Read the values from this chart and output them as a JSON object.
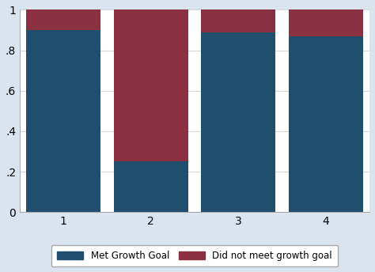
{
  "categories": [
    1,
    2,
    3,
    4
  ],
  "met_goal": [
    0.9,
    0.25,
    0.89,
    0.87
  ],
  "did_not_meet": [
    0.1,
    0.75,
    0.11,
    0.13
  ],
  "color_met": "#1F4E6E",
  "color_not_met": "#8B3040",
  "legend_met": "Met Growth Goal",
  "legend_not_met": "Did not meet growth goal",
  "yticks": [
    0,
    0.2,
    0.4,
    0.6,
    0.8,
    1.0
  ],
  "ytick_labels": [
    "0",
    ".2",
    ".4",
    ".6",
    ".8",
    "1"
  ],
  "xtick_labels": [
    "1",
    "2",
    "3",
    "4"
  ],
  "ylim": [
    0,
    1.0
  ],
  "bar_width": 0.85,
  "background_color": "#D9E4EE",
  "plot_bg_color": "#FFFFFF",
  "grid_color": "#D0D8E0"
}
